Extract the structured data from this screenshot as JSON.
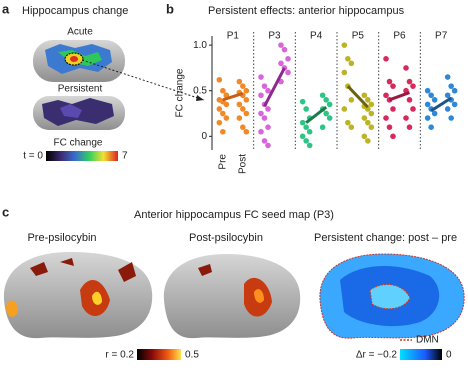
{
  "panel_a": {
    "letter": "a",
    "title": "Hippocampus change",
    "acute_label": "Acute",
    "persistent_label": "Persistent",
    "colorbar_title": "FC change",
    "colorbar_min": "t = 0",
    "colorbar_max": "7"
  },
  "chart_data": {
    "type": "strip",
    "letter": "b",
    "title": "Persistent effects: anterior hippocampus",
    "y_label": "FC change",
    "conditions": [
      "Pre",
      "Post"
    ],
    "ylim": [
      -0.15,
      1.1
    ],
    "yticks": [
      0,
      0.5,
      {
        "value": 1,
        "label": "1.0"
      }
    ],
    "series": [
      {
        "name": "P1",
        "color": "#f0892a",
        "line_color": "#c4601a",
        "pre": [
          0.62,
          0.5,
          0.45,
          0.4,
          0.38,
          0.35,
          0.3,
          0.25,
          0.2,
          0.15,
          0.05,
          0.45
        ],
        "post": [
          0.6,
          0.55,
          0.5,
          0.48,
          0.45,
          0.4,
          0.35,
          0.3,
          0.25,
          0.2,
          0.1,
          0.05
        ],
        "means": [
          0.4,
          0.47
        ]
      },
      {
        "name": "P3",
        "color": "#d866d8",
        "line_color": "#8a2a8c",
        "pre": [
          0.65,
          0.55,
          0.5,
          0.45,
          0.35,
          0.3,
          0.25,
          0.2,
          0.1,
          0.05,
          -0.05,
          -0.1
        ],
        "post": [
          1.0,
          0.95,
          0.85,
          0.8,
          0.75,
          0.7,
          0.6
        ],
        "means": [
          0.33,
          0.75
        ]
      },
      {
        "name": "P4",
        "color": "#2ec486",
        "line_color": "#1d7a4c",
        "pre": [
          0.38,
          0.3,
          0.2,
          0.15,
          0.1,
          0.05,
          0.0,
          -0.05,
          -0.1
        ],
        "post": [
          0.45,
          0.4,
          0.35,
          0.3,
          0.25,
          0.2,
          0.1
        ],
        "means": [
          0.15,
          0.32
        ]
      },
      {
        "name": "P5",
        "color": "#bcb325",
        "line_color": "#6b6210",
        "pre": [
          1.0,
          0.85,
          0.8,
          0.7,
          0.55,
          0.4,
          0.3,
          0.15,
          0.1
        ],
        "post": [
          0.45,
          0.4,
          0.35,
          0.33,
          0.3,
          0.25,
          0.2,
          0.15,
          0.1,
          0.0,
          -0.05
        ],
        "means": [
          0.55,
          0.32
        ]
      },
      {
        "name": "P6",
        "color": "#d8285c",
        "line_color": "#9a1a42",
        "pre": [
          0.85,
          0.6,
          0.55,
          0.45,
          0.4,
          0.3,
          0.2,
          0.1,
          0.0
        ],
        "post": [
          0.75,
          0.6,
          0.55,
          0.5,
          0.4,
          0.3,
          0.2,
          0.1
        ],
        "means": [
          0.4,
          0.48
        ]
      },
      {
        "name": "P7",
        "color": "#2f88d6",
        "line_color": "#1b5590",
        "pre": [
          0.5,
          0.45,
          0.4,
          0.35,
          0.3,
          0.25,
          0.2,
          0.1
        ],
        "post": [
          0.65,
          0.55,
          0.5,
          0.45,
          0.4,
          0.35,
          0.3,
          0.2
        ],
        "means": [
          0.28,
          0.42
        ]
      }
    ]
  },
  "panel_c": {
    "letter": "c",
    "title": "Anterior hippocampus FC seed map (P3)",
    "pre_label": "Pre-psilocybin",
    "post_label": "Post-psilocybin",
    "change_label": "Persistent change: post – pre",
    "colorbar_r_min": "r = 0.2",
    "colorbar_r_max": "0.5",
    "colorbar_dr_min": "Δr = −0.2",
    "colorbar_dr_max": "0",
    "dmn_legend": "DMN"
  }
}
